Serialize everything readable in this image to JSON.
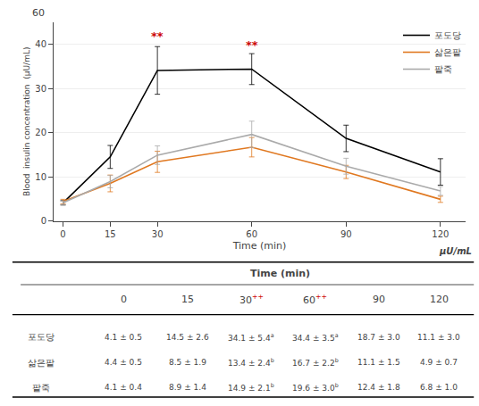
{
  "chart_data": {
    "type": "line",
    "x": [
      0,
      15,
      30,
      60,
      90,
      120
    ],
    "series": [
      {
        "name": "포도당",
        "color": "#000000",
        "values": [
          4.1,
          14.5,
          34.1,
          34.4,
          18.7,
          11.1
        ],
        "error": [
          0.5,
          2.6,
          5.4,
          3.5,
          3.0,
          3.0
        ]
      },
      {
        "name": "삶은팥",
        "color": "#e07820",
        "values": [
          4.4,
          8.5,
          13.4,
          16.7,
          11.1,
          4.9
        ],
        "error": [
          0.5,
          1.9,
          2.4,
          2.2,
          1.5,
          0.7
        ]
      },
      {
        "name": "팥죽",
        "color": "#aaaaaa",
        "values": [
          4.1,
          8.9,
          14.9,
          19.6,
          12.4,
          6.8
        ],
        "error": [
          0.4,
          1.4,
          2.1,
          3.0,
          1.8,
          1.0
        ]
      }
    ],
    "xlabel": "Time (min)",
    "ylabel": "Blood  insulin concentration  (μU/mL)",
    "xlim": [
      -3,
      128
    ],
    "xticks": [
      0,
      15,
      30,
      60,
      90,
      120
    ],
    "ylim": [
      0,
      45
    ],
    "yticks": [
      0,
      10,
      20,
      30,
      40
    ],
    "grid": true,
    "legend": "upper right",
    "annotations": [
      {
        "x": 30,
        "y": 40,
        "text": "**",
        "color": "#cc0000"
      },
      {
        "x": 60,
        "y": 38,
        "text": "**",
        "color": "#cc0000"
      }
    ],
    "y_extra_label": "60",
    "unit_label": "μU/mL",
    "table": {
      "header": "Time (min)",
      "sup_color": "#cc0000",
      "columns": [
        {
          "label": "0"
        },
        {
          "label": "15"
        },
        {
          "label": "30",
          "sup": "++"
        },
        {
          "label": "60",
          "sup": "++"
        },
        {
          "label": "90"
        },
        {
          "label": "120"
        }
      ],
      "rows": [
        {
          "label": "포도당",
          "cells": [
            {
              "text": "4.1 ± 0.5"
            },
            {
              "text": "14.5 ± 2.6"
            },
            {
              "text": "34.1 ± 5.4",
              "sup": "a"
            },
            {
              "text": "34.4 ± 3.5",
              "sup": "a"
            },
            {
              "text": "18.7 ± 3.0"
            },
            {
              "text": "11.1 ± 3.0"
            }
          ]
        },
        {
          "label": "삶은팥",
          "cells": [
            {
              "text": "4.4 ± 0.5"
            },
            {
              "text": "8.5 ± 1.9"
            },
            {
              "text": "13.4 ± 2.4",
              "sup": "b"
            },
            {
              "text": "16.7 ± 2.2",
              "sup": "b"
            },
            {
              "text": "11.1 ± 1.5"
            },
            {
              "text": "4.9 ± 0.7"
            }
          ]
        },
        {
          "label": "팥죽",
          "cells": [
            {
              "text": "4.1 ± 0.4"
            },
            {
              "text": "8.9 ± 1.4"
            },
            {
              "text": "14.9 ± 2.1",
              "sup": "b"
            },
            {
              "text": "19.6 ± 3.0",
              "sup": "b"
            },
            {
              "text": "12.4 ± 1.8"
            },
            {
              "text": "6.8 ± 1.0"
            }
          ]
        }
      ]
    }
  }
}
